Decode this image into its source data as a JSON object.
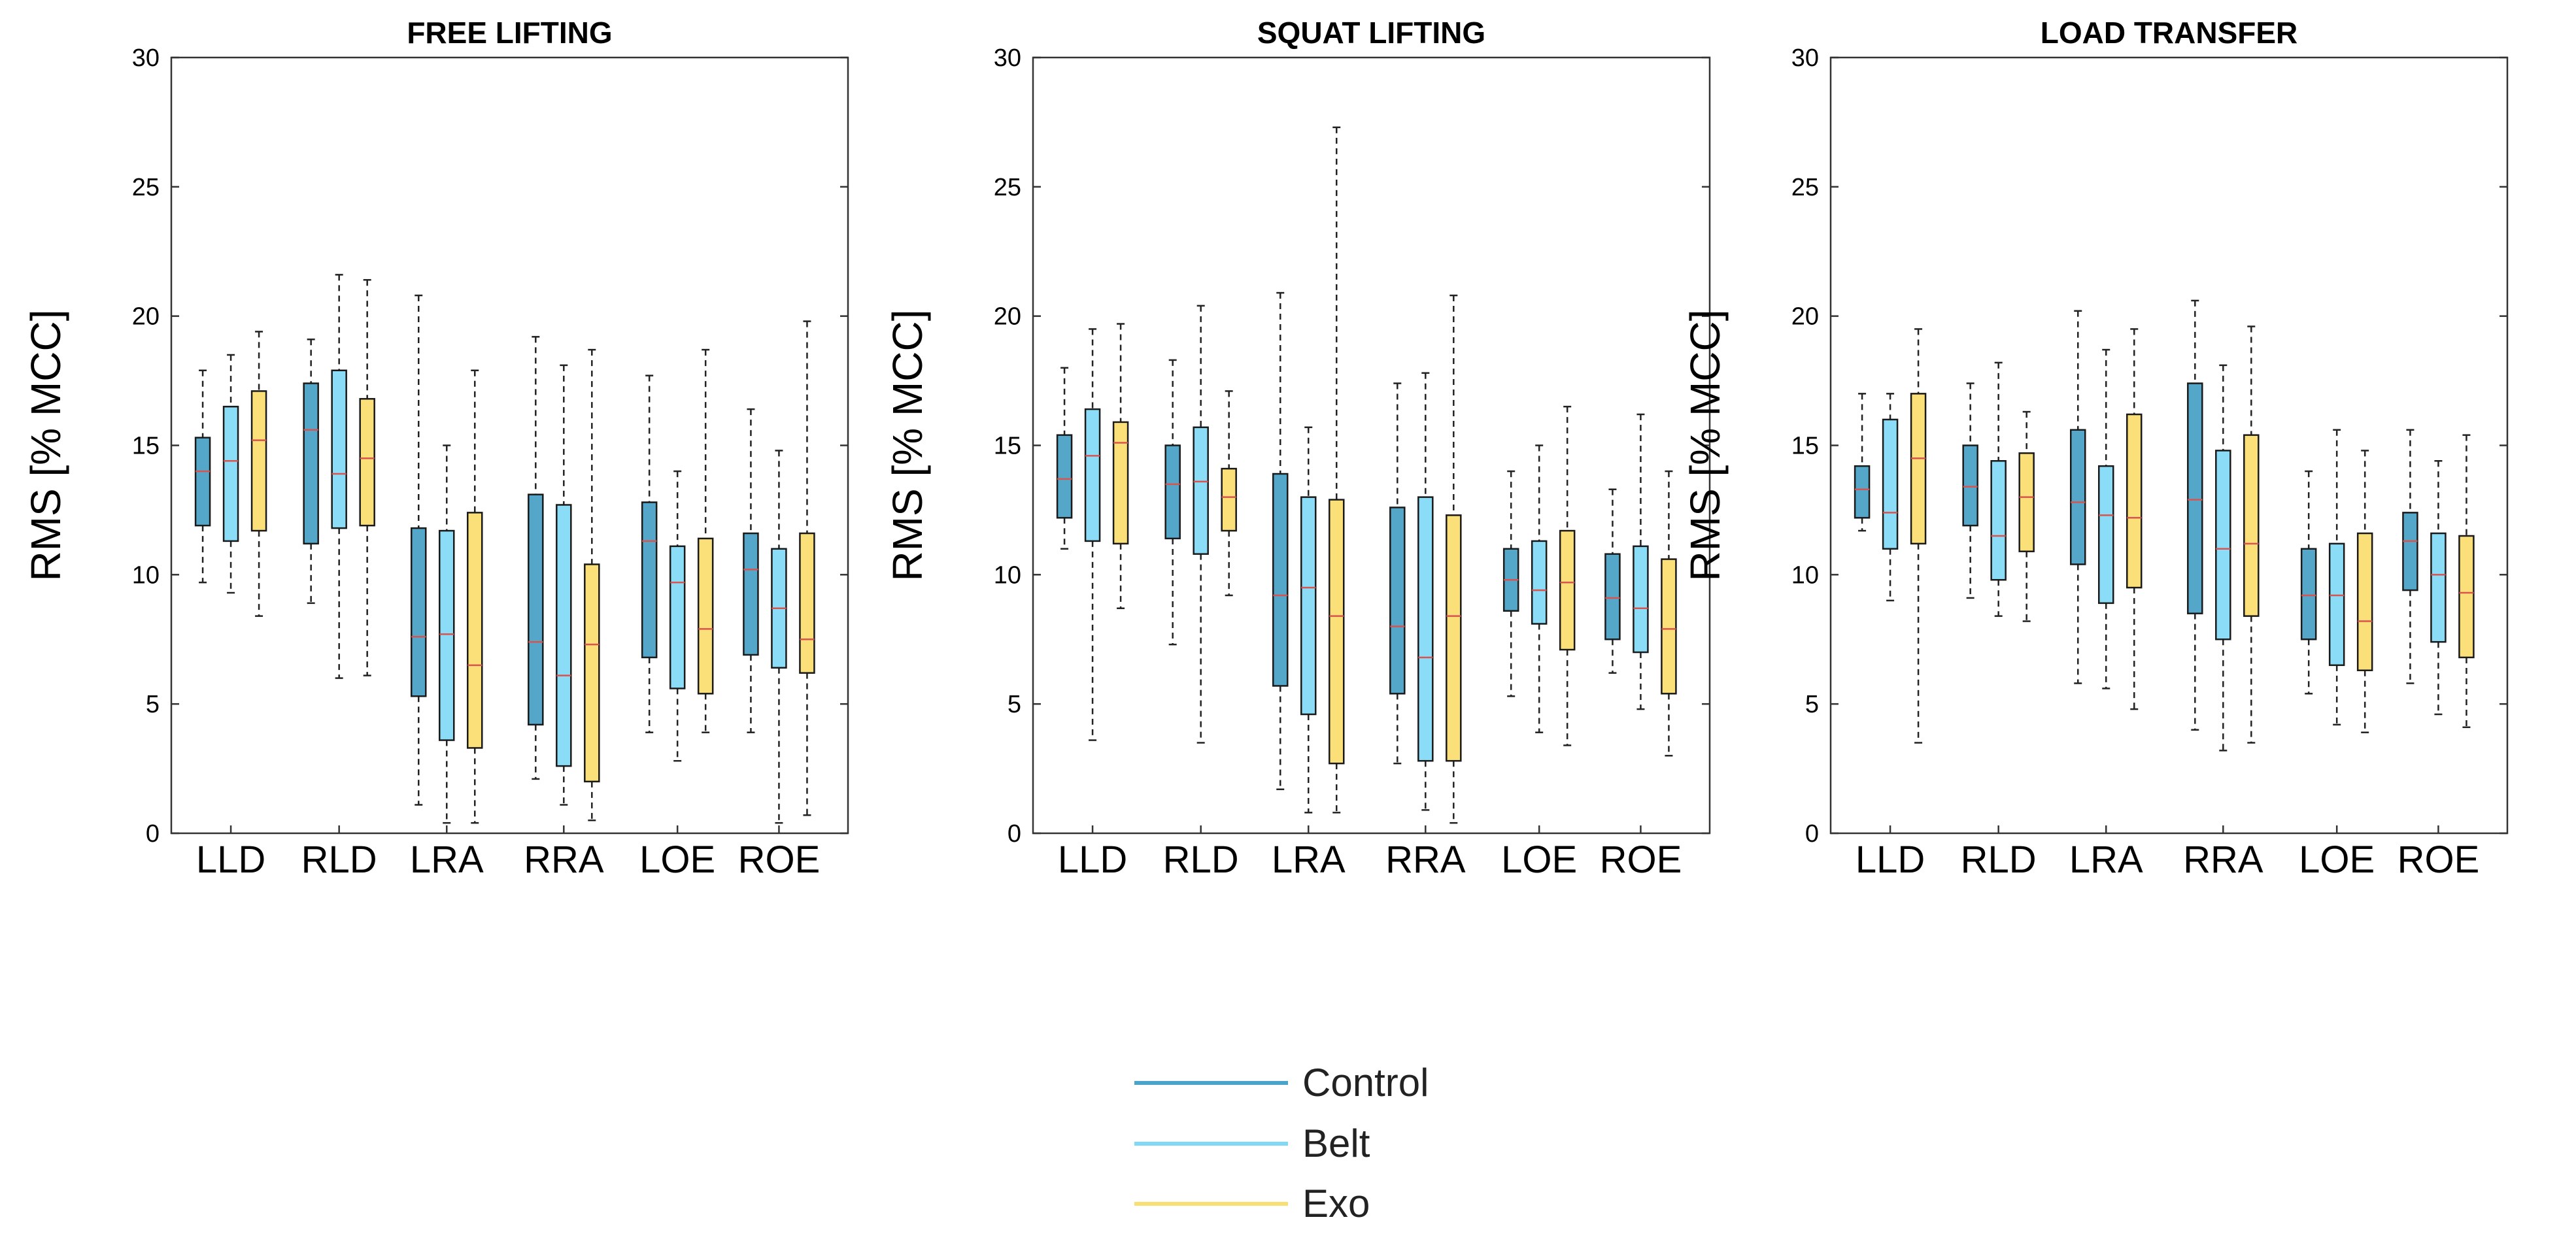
{
  "chart_data": [
    {
      "type": "boxplot",
      "title": "FREE LIFTING",
      "xlabel": "",
      "ylabel": "RMS [% MCC]",
      "ylim": [
        0,
        30
      ],
      "yticks": [
        "0",
        "5",
        "10",
        "15",
        "20",
        "25",
        "30"
      ],
      "categories": [
        "LLD",
        "RLD",
        "LRA",
        "RRA",
        "LOE",
        "ROE"
      ],
      "series": [
        {
          "name": "Control",
          "boxes": [
            {
              "min": 9.7,
              "q1": 11.9,
              "median": 14.0,
              "q3": 15.3,
              "max": 17.9
            },
            {
              "min": 8.9,
              "q1": 11.2,
              "median": 15.6,
              "q3": 17.4,
              "max": 19.1
            },
            {
              "min": 1.1,
              "q1": 5.3,
              "median": 7.6,
              "q3": 11.8,
              "max": 20.8
            },
            {
              "min": 2.1,
              "q1": 4.2,
              "median": 7.4,
              "q3": 13.1,
              "max": 19.2
            },
            {
              "min": 3.9,
              "q1": 6.8,
              "median": 11.3,
              "q3": 12.8,
              "max": 17.7
            },
            {
              "min": 3.9,
              "q1": 6.9,
              "median": 10.2,
              "q3": 11.6,
              "max": 16.4
            }
          ]
        },
        {
          "name": "Belt",
          "boxes": [
            {
              "min": 9.3,
              "q1": 11.3,
              "median": 14.4,
              "q3": 16.5,
              "max": 18.5
            },
            {
              "min": 6.0,
              "q1": 11.8,
              "median": 13.9,
              "q3": 17.9,
              "max": 21.6
            },
            {
              "min": 0.4,
              "q1": 3.6,
              "median": 7.7,
              "q3": 11.7,
              "max": 15.0
            },
            {
              "min": 1.1,
              "q1": 2.6,
              "median": 6.1,
              "q3": 12.7,
              "max": 18.1
            },
            {
              "min": 2.8,
              "q1": 5.6,
              "median": 9.7,
              "q3": 11.1,
              "max": 14.0
            },
            {
              "min": 0.4,
              "q1": 6.4,
              "median": 8.7,
              "q3": 11.0,
              "max": 14.8
            }
          ]
        },
        {
          "name": "Exo",
          "boxes": [
            {
              "min": 8.4,
              "q1": 11.7,
              "median": 15.2,
              "q3": 17.1,
              "max": 19.4
            },
            {
              "min": 6.1,
              "q1": 11.9,
              "median": 14.5,
              "q3": 16.8,
              "max": 21.4
            },
            {
              "min": 0.4,
              "q1": 3.3,
              "median": 6.5,
              "q3": 12.4,
              "max": 17.9
            },
            {
              "min": 0.5,
              "q1": 2.0,
              "median": 7.3,
              "q3": 10.4,
              "max": 18.7
            },
            {
              "min": 3.9,
              "q1": 5.4,
              "median": 7.9,
              "q3": 11.4,
              "max": 18.7
            },
            {
              "min": 0.7,
              "q1": 6.2,
              "median": 7.5,
              "q3": 11.6,
              "max": 19.8
            }
          ]
        }
      ]
    },
    {
      "type": "boxplot",
      "title": "SQUAT LIFTING",
      "xlabel": "",
      "ylabel": "RMS [% MCC]",
      "ylim": [
        0,
        30
      ],
      "yticks": [
        "0",
        "5",
        "10",
        "15",
        "20",
        "25",
        "30"
      ],
      "categories": [
        "LLD",
        "RLD",
        "LRA",
        "RRA",
        "LOE",
        "ROE"
      ],
      "series": [
        {
          "name": "Control",
          "boxes": [
            {
              "min": 11.0,
              "q1": 12.2,
              "median": 13.7,
              "q3": 15.4,
              "max": 18.0
            },
            {
              "min": 7.3,
              "q1": 11.4,
              "median": 13.5,
              "q3": 15.0,
              "max": 18.3
            },
            {
              "min": 1.7,
              "q1": 5.7,
              "median": 9.2,
              "q3": 13.9,
              "max": 20.9
            },
            {
              "min": 2.7,
              "q1": 5.4,
              "median": 8.0,
              "q3": 12.6,
              "max": 17.4
            },
            {
              "min": 5.3,
              "q1": 8.6,
              "median": 9.8,
              "q3": 11.0,
              "max": 14.0
            },
            {
              "min": 6.2,
              "q1": 7.5,
              "median": 9.1,
              "q3": 10.8,
              "max": 13.3
            }
          ]
        },
        {
          "name": "Belt",
          "boxes": [
            {
              "min": 3.6,
              "q1": 11.3,
              "median": 14.6,
              "q3": 16.4,
              "max": 19.5
            },
            {
              "min": 3.5,
              "q1": 10.8,
              "median": 13.6,
              "q3": 15.7,
              "max": 20.4
            },
            {
              "min": 0.8,
              "q1": 4.6,
              "median": 9.5,
              "q3": 13.0,
              "max": 15.7
            },
            {
              "min": 0.9,
              "q1": 2.8,
              "median": 6.8,
              "q3": 13.0,
              "max": 17.8
            },
            {
              "min": 3.9,
              "q1": 8.1,
              "median": 9.4,
              "q3": 11.3,
              "max": 15.0
            },
            {
              "min": 4.8,
              "q1": 7.0,
              "median": 8.7,
              "q3": 11.1,
              "max": 16.2
            }
          ]
        },
        {
          "name": "Exo",
          "boxes": [
            {
              "min": 8.7,
              "q1": 11.2,
              "median": 15.1,
              "q3": 15.9,
              "max": 19.7
            },
            {
              "min": 9.2,
              "q1": 11.7,
              "median": 13.0,
              "q3": 14.1,
              "max": 17.1
            },
            {
              "min": 0.8,
              "q1": 2.7,
              "median": 8.4,
              "q3": 12.9,
              "max": 27.3
            },
            {
              "min": 0.4,
              "q1": 2.8,
              "median": 8.4,
              "q3": 12.3,
              "max": 20.8
            },
            {
              "min": 3.4,
              "q1": 7.1,
              "median": 9.7,
              "q3": 11.7,
              "max": 16.5
            },
            {
              "min": 3.0,
              "q1": 5.4,
              "median": 7.9,
              "q3": 10.6,
              "max": 14.0
            }
          ]
        }
      ]
    },
    {
      "type": "boxplot",
      "title": "LOAD TRANSFER",
      "xlabel": "",
      "ylabel": "RMS [% MCC]",
      "ylim": [
        0,
        30
      ],
      "yticks": [
        "0",
        "5",
        "10",
        "15",
        "20",
        "25",
        "30"
      ],
      "categories": [
        "LLD",
        "RLD",
        "LRA",
        "RRA",
        "LOE",
        "ROE"
      ],
      "series": [
        {
          "name": "Control",
          "boxes": [
            {
              "min": 11.7,
              "q1": 12.2,
              "median": 13.3,
              "q3": 14.2,
              "max": 17.0
            },
            {
              "min": 9.1,
              "q1": 11.9,
              "median": 13.4,
              "q3": 15.0,
              "max": 17.4
            },
            {
              "min": 5.8,
              "q1": 10.4,
              "median": 12.8,
              "q3": 15.6,
              "max": 20.2
            },
            {
              "min": 4.0,
              "q1": 8.5,
              "median": 12.9,
              "q3": 17.4,
              "max": 20.6
            },
            {
              "min": 5.4,
              "q1": 7.5,
              "median": 9.2,
              "q3": 11.0,
              "max": 14.0
            },
            {
              "min": 5.8,
              "q1": 9.4,
              "median": 11.3,
              "q3": 12.4,
              "max": 15.6
            }
          ]
        },
        {
          "name": "Belt",
          "boxes": [
            {
              "min": 9.0,
              "q1": 11.0,
              "median": 12.4,
              "q3": 16.0,
              "max": 17.0
            },
            {
              "min": 8.4,
              "q1": 9.8,
              "median": 11.5,
              "q3": 14.4,
              "max": 18.2
            },
            {
              "min": 5.6,
              "q1": 8.9,
              "median": 12.3,
              "q3": 14.2,
              "max": 18.7
            },
            {
              "min": 3.2,
              "q1": 7.5,
              "median": 11.0,
              "q3": 14.8,
              "max": 18.1
            },
            {
              "min": 4.2,
              "q1": 6.5,
              "median": 9.2,
              "q3": 11.2,
              "max": 15.6
            },
            {
              "min": 4.6,
              "q1": 7.4,
              "median": 10.0,
              "q3": 11.6,
              "max": 14.4
            }
          ]
        },
        {
          "name": "Exo",
          "boxes": [
            {
              "min": 3.5,
              "q1": 11.2,
              "median": 14.5,
              "q3": 17.0,
              "max": 19.5
            },
            {
              "min": 8.2,
              "q1": 10.9,
              "median": 13.0,
              "q3": 14.7,
              "max": 16.3
            },
            {
              "min": 4.8,
              "q1": 9.5,
              "median": 12.2,
              "q3": 16.2,
              "max": 19.5
            },
            {
              "min": 3.5,
              "q1": 8.4,
              "median": 11.2,
              "q3": 15.4,
              "max": 19.6
            },
            {
              "min": 3.9,
              "q1": 6.3,
              "median": 8.2,
              "q3": 11.6,
              "max": 14.8
            },
            {
              "min": 4.1,
              "q1": 6.8,
              "median": 9.3,
              "q3": 11.5,
              "max": 15.4
            }
          ]
        }
      ]
    }
  ],
  "legend": [
    {
      "label": "Control",
      "color": "#4aa3c8"
    },
    {
      "label": "Belt",
      "color": "#7fd8f5"
    },
    {
      "label": "Exo",
      "color": "#f9de73"
    }
  ],
  "colors": {
    "Control_fill": "#54a7c9",
    "Belt_fill": "#8bdcf6",
    "Exo_fill": "#fbdf78",
    "median": "#d9534f",
    "axis": "#333333"
  }
}
